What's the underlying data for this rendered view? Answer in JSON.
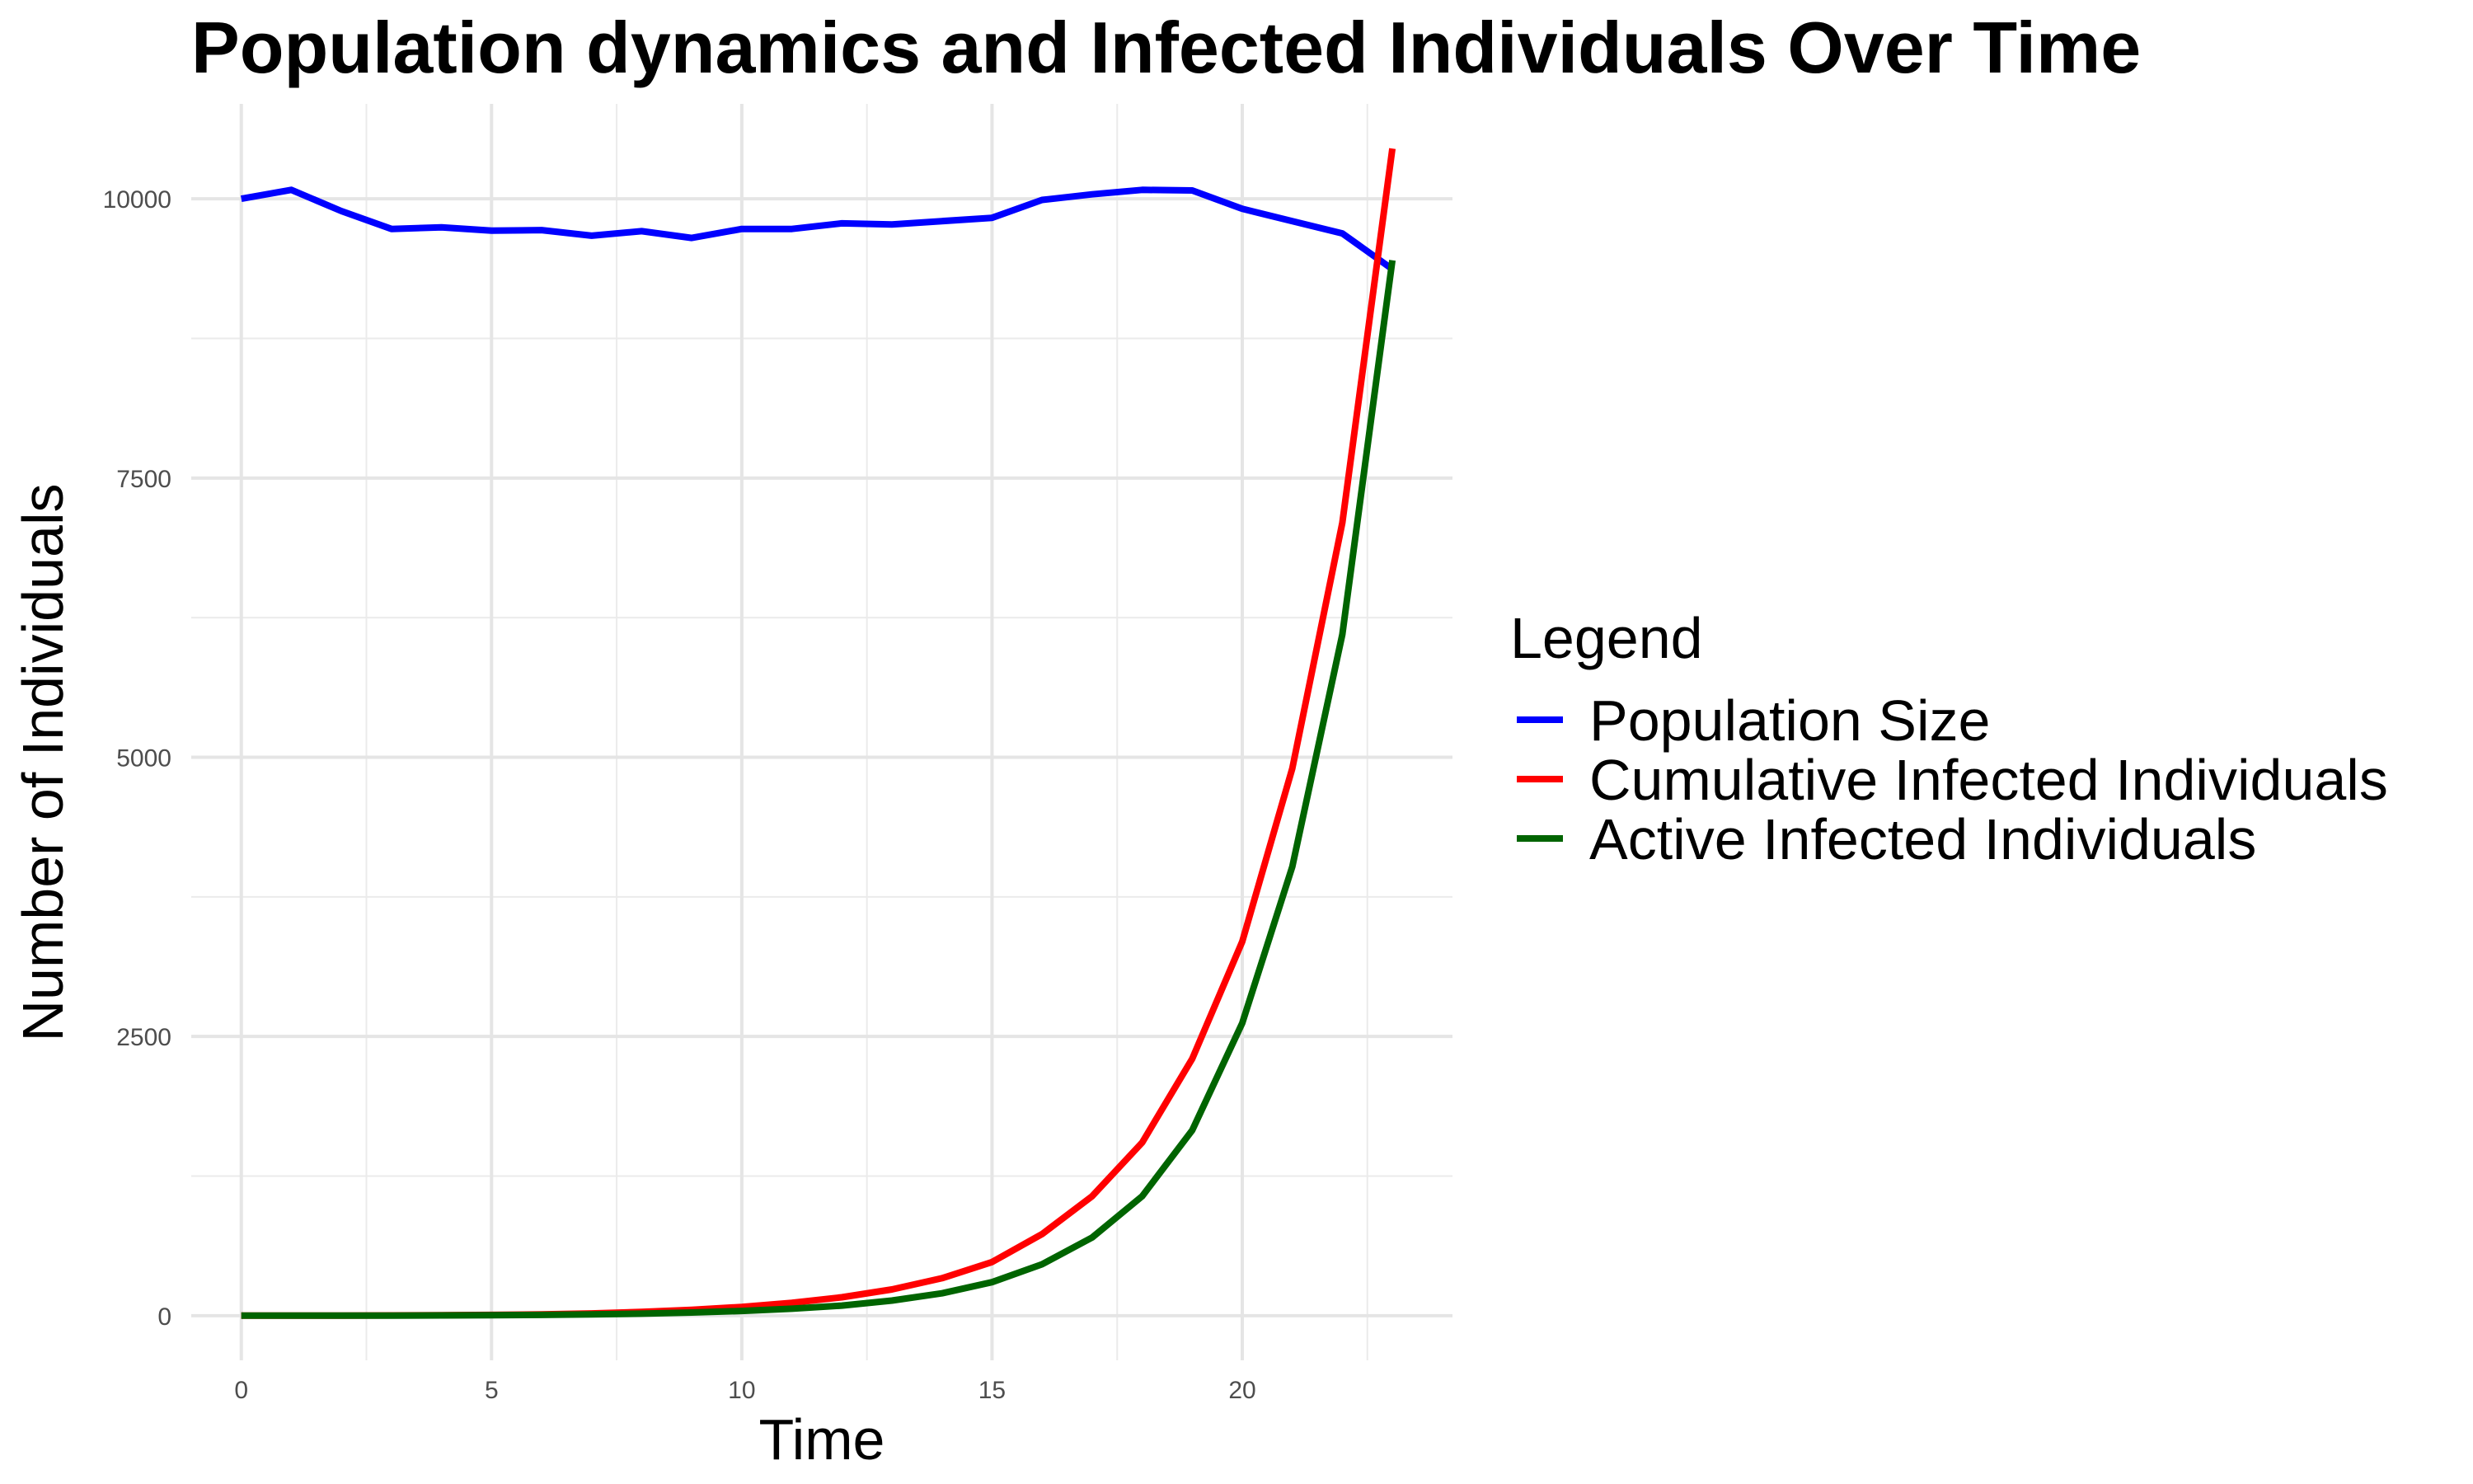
{
  "chart_data": {
    "type": "line",
    "title": "Population dynamics and Infected Individuals Over Time",
    "xlabel": "Time",
    "ylabel": "Number of Individuals",
    "x": [
      0,
      1,
      2,
      3,
      4,
      5,
      6,
      7,
      8,
      9,
      10,
      11,
      12,
      13,
      14,
      15,
      16,
      17,
      18,
      19,
      20,
      21,
      22,
      23
    ],
    "x_ticks": [
      "0",
      "5",
      "10",
      "15",
      "20"
    ],
    "x_tick_values": [
      0,
      5,
      10,
      15,
      20
    ],
    "y_ticks": [
      "0",
      "2500",
      "5000",
      "7500",
      "10000"
    ],
    "y_tick_values": [
      0,
      2500,
      5000,
      7500,
      10000
    ],
    "xlim": [
      -1.0,
      24.2
    ],
    "ylim": [
      -400,
      10850
    ],
    "grid": true,
    "legend": {
      "title": "Legend",
      "position": "right"
    },
    "series": [
      {
        "name": "Population Size",
        "color": "#0000ff",
        "values": [
          10000,
          10080,
          9890,
          9730,
          9745,
          9715,
          9720,
          9670,
          9710,
          9650,
          9730,
          9730,
          9780,
          9770,
          9800,
          9830,
          9990,
          10040,
          10080,
          10075,
          9910,
          9800,
          9690,
          9370
        ]
      },
      {
        "name": "Cumulative Infected Individuals",
        "color": "#ff0000",
        "values": [
          0,
          0,
          1,
          2,
          4,
          7,
          12,
          20,
          33,
          52,
          78,
          115,
          165,
          235,
          335,
          480,
          730,
          1070,
          1550,
          2300,
          3350,
          4900,
          7100,
          10450
        ]
      },
      {
        "name": "Active Infected Individuals",
        "color": "#006400",
        "values": [
          0,
          0,
          1,
          1,
          2,
          4,
          7,
          11,
          18,
          28,
          42,
          62,
          90,
          135,
          200,
          300,
          460,
          700,
          1070,
          1660,
          2620,
          4020,
          6100,
          9450
        ]
      }
    ]
  }
}
